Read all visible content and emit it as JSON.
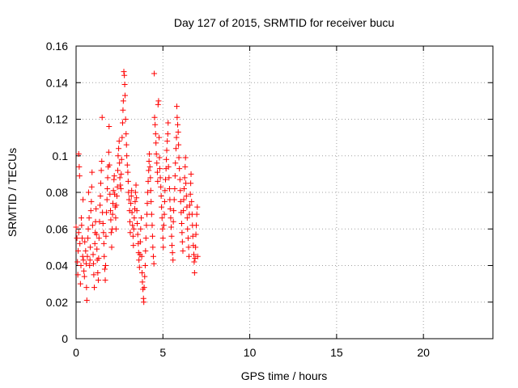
{
  "chart_data": {
    "type": "scatter",
    "title": "Day 127 of 2015, SRMTID for receiver bucu",
    "xlabel": "GPS time / hours",
    "ylabel": "SRMTID / TECUs",
    "xlim": [
      0,
      24
    ],
    "ylim": [
      0,
      0.16
    ],
    "xticks": [
      0,
      5,
      10,
      15,
      20
    ],
    "xtick_labels": [
      "0",
      "5",
      "10",
      "15",
      "20"
    ],
    "yticks": [
      0,
      0.02,
      0.04,
      0.06,
      0.08,
      0.1,
      0.12,
      0.14,
      0.16
    ],
    "ytick_labels": [
      "0",
      "0.02",
      "0.04",
      "0.06",
      "0.08",
      "0.1",
      "0.12",
      "0.14",
      "0.16"
    ],
    "grid": true,
    "marker": "+",
    "color": "#ff0000",
    "series": [
      {
        "points": [
          [
            0.0,
            0.061
          ],
          [
            0.05,
            0.055
          ],
          [
            0.08,
            0.042
          ],
          [
            0.1,
            0.035
          ],
          [
            0.12,
            0.048
          ],
          [
            0.15,
            0.058
          ],
          [
            0.15,
            0.101
          ],
          [
            0.18,
            0.094
          ],
          [
            0.2,
            0.089
          ],
          [
            0.22,
            0.052
          ],
          [
            0.25,
            0.03
          ],
          [
            0.28,
            0.04
          ],
          [
            0.3,
            0.066
          ],
          [
            0.32,
            0.062
          ],
          [
            0.35,
            0.055
          ],
          [
            0.38,
            0.045
          ],
          [
            0.4,
            0.076
          ],
          [
            0.42,
            0.043
          ],
          [
            0.45,
            0.037
          ],
          [
            0.48,
            0.034
          ],
          [
            0.5,
            0.053
          ],
          [
            0.55,
            0.048
          ],
          [
            0.58,
            0.041
          ],
          [
            0.6,
            0.028
          ],
          [
            0.62,
            0.021
          ],
          [
            0.65,
            0.045
          ],
          [
            0.68,
            0.055
          ],
          [
            0.7,
            0.06
          ],
          [
            0.72,
            0.08
          ],
          [
            0.75,
            0.066
          ],
          [
            0.78,
            0.04
          ],
          [
            0.8,
            0.043
          ],
          [
            0.82,
            0.05
          ],
          [
            0.85,
            0.07
          ],
          [
            0.88,
            0.075
          ],
          [
            0.9,
            0.083
          ],
          [
            0.92,
            0.091
          ],
          [
            0.95,
            0.062
          ],
          [
            0.98,
            0.046
          ],
          [
            1.0,
            0.041
          ],
          [
            1.02,
            0.035
          ],
          [
            1.05,
            0.028
          ],
          [
            1.08,
            0.052
          ],
          [
            1.1,
            0.058
          ],
          [
            1.12,
            0.064
          ],
          [
            1.15,
            0.071
          ],
          [
            1.18,
            0.057
          ],
          [
            1.2,
            0.049
          ],
          [
            1.22,
            0.043
          ],
          [
            1.25,
            0.036
          ],
          [
            1.28,
            0.032
          ],
          [
            1.3,
            0.044
          ],
          [
            1.32,
            0.055
          ],
          [
            1.35,
            0.064
          ],
          [
            1.38,
            0.073
          ],
          [
            1.4,
            0.078
          ],
          [
            1.42,
            0.085
          ],
          [
            1.45,
            0.092
          ],
          [
            1.48,
            0.097
          ],
          [
            1.5,
            0.121
          ],
          [
            1.52,
            0.069
          ],
          [
            1.55,
            0.063
          ],
          [
            1.58,
            0.058
          ],
          [
            1.6,
            0.052
          ],
          [
            1.62,
            0.045
          ],
          [
            1.65,
            0.038
          ],
          [
            1.68,
            0.032
          ],
          [
            1.7,
            0.04
          ],
          [
            1.72,
            0.056
          ],
          [
            1.75,
            0.069
          ],
          [
            1.78,
            0.076
          ],
          [
            1.8,
            0.082
          ],
          [
            1.82,
            0.088
          ],
          [
            1.85,
            0.094
          ],
          [
            1.88,
            0.102
          ],
          [
            1.9,
            0.116
          ],
          [
            1.92,
            0.095
          ],
          [
            1.95,
            0.079
          ],
          [
            1.98,
            0.07
          ],
          [
            2.0,
            0.065
          ],
          [
            2.02,
            0.058
          ],
          [
            2.05,
            0.05
          ],
          [
            2.08,
            0.06
          ],
          [
            2.1,
            0.068
          ],
          [
            2.12,
            0.074
          ],
          [
            2.15,
            0.081
          ],
          [
            2.18,
            0.087
          ],
          [
            2.2,
            0.089
          ],
          [
            2.22,
            0.079
          ],
          [
            2.25,
            0.072
          ],
          [
            2.28,
            0.066
          ],
          [
            2.3,
            0.06
          ],
          [
            2.32,
            0.073
          ],
          [
            2.35,
            0.078
          ],
          [
            2.38,
            0.083
          ],
          [
            2.4,
            0.092
          ],
          [
            2.42,
            0.1
          ],
          [
            2.45,
            0.104
          ],
          [
            2.48,
            0.108
          ],
          [
            2.5,
            0.096
          ],
          [
            2.52,
            0.088
          ],
          [
            2.55,
            0.084
          ],
          [
            2.58,
            0.082
          ],
          [
            2.6,
            0.09
          ],
          [
            2.62,
            0.098
          ],
          [
            2.65,
            0.11
          ],
          [
            2.68,
            0.118
          ],
          [
            2.7,
            0.125
          ],
          [
            2.72,
            0.13
          ],
          [
            2.75,
            0.146
          ],
          [
            2.78,
            0.144
          ],
          [
            2.8,
            0.139
          ],
          [
            2.82,
            0.133
          ],
          [
            2.85,
            0.12
          ],
          [
            2.88,
            0.112
          ],
          [
            2.9,
            0.106
          ],
          [
            2.92,
            0.1
          ],
          [
            2.95,
            0.095
          ],
          [
            2.98,
            0.091
          ],
          [
            3.0,
            0.086
          ],
          [
            3.02,
            0.08
          ],
          [
            3.05,
            0.076
          ],
          [
            3.08,
            0.07
          ],
          [
            3.1,
            0.064
          ],
          [
            3.12,
            0.058
          ],
          [
            3.15,
            0.074
          ],
          [
            3.18,
            0.078
          ],
          [
            3.2,
            0.081
          ],
          [
            3.22,
            0.069
          ],
          [
            3.25,
            0.062
          ],
          [
            3.28,
            0.056
          ],
          [
            3.3,
            0.051
          ],
          [
            3.32,
            0.06
          ],
          [
            3.35,
            0.066
          ],
          [
            3.38,
            0.071
          ],
          [
            3.4,
            0.075
          ],
          [
            3.42,
            0.08
          ],
          [
            3.45,
            0.084
          ],
          [
            3.48,
            0.077
          ],
          [
            3.5,
            0.07
          ],
          [
            3.52,
            0.063
          ],
          [
            3.55,
            0.057
          ],
          [
            3.58,
            0.052
          ],
          [
            3.6,
            0.047
          ],
          [
            3.62,
            0.043
          ],
          [
            3.65,
            0.039
          ],
          [
            3.68,
            0.046
          ],
          [
            3.7,
            0.053
          ],
          [
            3.72,
            0.06
          ],
          [
            3.75,
            0.066
          ],
          [
            3.78,
            0.045
          ],
          [
            3.8,
            0.036
          ],
          [
            3.82,
            0.031
          ],
          [
            3.85,
            0.027
          ],
          [
            3.88,
            0.022
          ],
          [
            3.9,
            0.02
          ],
          [
            3.92,
            0.028
          ],
          [
            3.95,
            0.034
          ],
          [
            3.98,
            0.04
          ],
          [
            4.0,
            0.048
          ],
          [
            4.02,
            0.055
          ],
          [
            4.05,
            0.062
          ],
          [
            4.08,
            0.068
          ],
          [
            4.1,
            0.074
          ],
          [
            4.12,
            0.08
          ],
          [
            4.15,
            0.086
          ],
          [
            4.18,
            0.092
          ],
          [
            4.2,
            0.097
          ],
          [
            4.22,
            0.101
          ],
          [
            4.25,
            0.094
          ],
          [
            4.28,
            0.088
          ],
          [
            4.3,
            0.081
          ],
          [
            4.32,
            0.075
          ],
          [
            4.35,
            0.068
          ],
          [
            4.38,
            0.062
          ],
          [
            4.4,
            0.056
          ],
          [
            4.42,
            0.05
          ],
          [
            4.45,
            0.045
          ],
          [
            4.48,
            0.041
          ],
          [
            4.5,
            0.145
          ],
          [
            4.52,
            0.121
          ],
          [
            4.55,
            0.117
          ],
          [
            4.58,
            0.112
          ],
          [
            4.6,
            0.107
          ],
          [
            4.62,
            0.101
          ],
          [
            4.65,
            0.096
          ],
          [
            4.68,
            0.091
          ],
          [
            4.7,
            0.086
          ],
          [
            4.72,
            0.128
          ],
          [
            4.75,
            0.13
          ],
          [
            4.78,
            0.11
          ],
          [
            4.8,
            0.099
          ],
          [
            4.82,
            0.093
          ],
          [
            4.85,
            0.088
          ],
          [
            4.88,
            0.083
          ],
          [
            4.9,
            0.078
          ],
          [
            4.92,
            0.072
          ],
          [
            4.95,
            0.066
          ],
          [
            4.98,
            0.06
          ],
          [
            5.0,
            0.055
          ],
          [
            5.02,
            0.05
          ],
          [
            5.05,
            0.062
          ],
          [
            5.08,
            0.068
          ],
          [
            5.1,
            0.075
          ],
          [
            5.12,
            0.081
          ],
          [
            5.15,
            0.087
          ],
          [
            5.18,
            0.093
          ],
          [
            5.2,
            0.098
          ],
          [
            5.22,
            0.103
          ],
          [
            5.25,
            0.108
          ],
          [
            5.28,
            0.112
          ],
          [
            5.3,
            0.118
          ],
          [
            5.32,
            0.094
          ],
          [
            5.35,
            0.088
          ],
          [
            5.38,
            0.082
          ],
          [
            5.4,
            0.076
          ],
          [
            5.42,
            0.071
          ],
          [
            5.45,
            0.066
          ],
          [
            5.48,
            0.061
          ],
          [
            5.5,
            0.056
          ],
          [
            5.52,
            0.051
          ],
          [
            5.55,
            0.047
          ],
          [
            5.58,
            0.043
          ],
          [
            5.6,
            0.064
          ],
          [
            5.62,
            0.07
          ],
          [
            5.65,
            0.076
          ],
          [
            5.68,
            0.082
          ],
          [
            5.7,
            0.089
          ],
          [
            5.72,
            0.096
          ],
          [
            5.75,
            0.104
          ],
          [
            5.78,
            0.11
          ],
          [
            5.8,
            0.127
          ],
          [
            5.82,
            0.121
          ],
          [
            5.85,
            0.117
          ],
          [
            5.88,
            0.113
          ],
          [
            5.9,
            0.106
          ],
          [
            5.92,
            0.099
          ],
          [
            5.95,
            0.093
          ],
          [
            5.98,
            0.087
          ],
          [
            6.0,
            0.081
          ],
          [
            6.02,
            0.075
          ],
          [
            6.05,
            0.069
          ],
          [
            6.08,
            0.063
          ],
          [
            6.1,
            0.058
          ],
          [
            6.12,
            0.053
          ],
          [
            6.15,
            0.048
          ],
          [
            6.18,
            0.07
          ],
          [
            6.2,
            0.076
          ],
          [
            6.22,
            0.082
          ],
          [
            6.25,
            0.088
          ],
          [
            6.28,
            0.094
          ],
          [
            6.3,
            0.099
          ],
          [
            6.32,
            0.085
          ],
          [
            6.35,
            0.078
          ],
          [
            6.38,
            0.072
          ],
          [
            6.4,
            0.066
          ],
          [
            6.42,
            0.06
          ],
          [
            6.45,
            0.055
          ],
          [
            6.48,
            0.05
          ],
          [
            6.5,
            0.045
          ],
          [
            6.52,
            0.068
          ],
          [
            6.55,
            0.073
          ],
          [
            6.58,
            0.079
          ],
          [
            6.6,
            0.085
          ],
          [
            6.62,
            0.09
          ],
          [
            6.65,
            0.075
          ],
          [
            6.68,
            0.068
          ],
          [
            6.7,
            0.062
          ],
          [
            6.72,
            0.056
          ],
          [
            6.75,
            0.051
          ],
          [
            6.78,
            0.046
          ],
          [
            6.8,
            0.042
          ],
          [
            6.82,
            0.036
          ],
          [
            6.85,
            0.044
          ],
          [
            6.88,
            0.05
          ],
          [
            6.9,
            0.057
          ],
          [
            6.92,
            0.062
          ],
          [
            6.95,
            0.068
          ],
          [
            6.98,
            0.072
          ],
          [
            7.0,
            0.045
          ]
        ]
      }
    ]
  }
}
